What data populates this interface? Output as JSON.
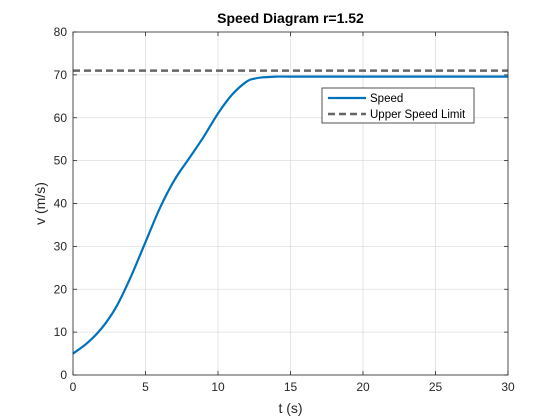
{
  "chart_data": {
    "type": "line",
    "title": "Speed Diagram r=1.52",
    "xlabel": "t (s)",
    "ylabel": "v (m/s)",
    "xlim": [
      0,
      30
    ],
    "ylim": [
      0,
      80
    ],
    "xticks": [
      0,
      5,
      10,
      15,
      20,
      25,
      30
    ],
    "yticks": [
      0,
      10,
      20,
      30,
      40,
      50,
      60,
      70,
      80
    ],
    "grid": true,
    "legend_position": "top-right",
    "series": [
      {
        "name": "Speed",
        "color": "#0072BD",
        "style": "solid",
        "x": [
          0,
          1,
          2,
          3,
          4,
          5,
          6,
          7,
          8,
          9,
          10,
          11,
          12,
          12.5,
          13,
          13.5,
          14,
          15,
          20,
          25,
          30
        ],
        "y": [
          5,
          7.5,
          11,
          16,
          23,
          31,
          39,
          45.5,
          50.5,
          55.5,
          61,
          65.5,
          68.5,
          69.1,
          69.4,
          69.5,
          69.6,
          69.6,
          69.6,
          69.6,
          69.6
        ]
      },
      {
        "name": "Upper Speed Limit",
        "color": "#666666",
        "style": "dashed",
        "x": [
          0,
          30
        ],
        "y": [
          71,
          71
        ]
      }
    ]
  }
}
